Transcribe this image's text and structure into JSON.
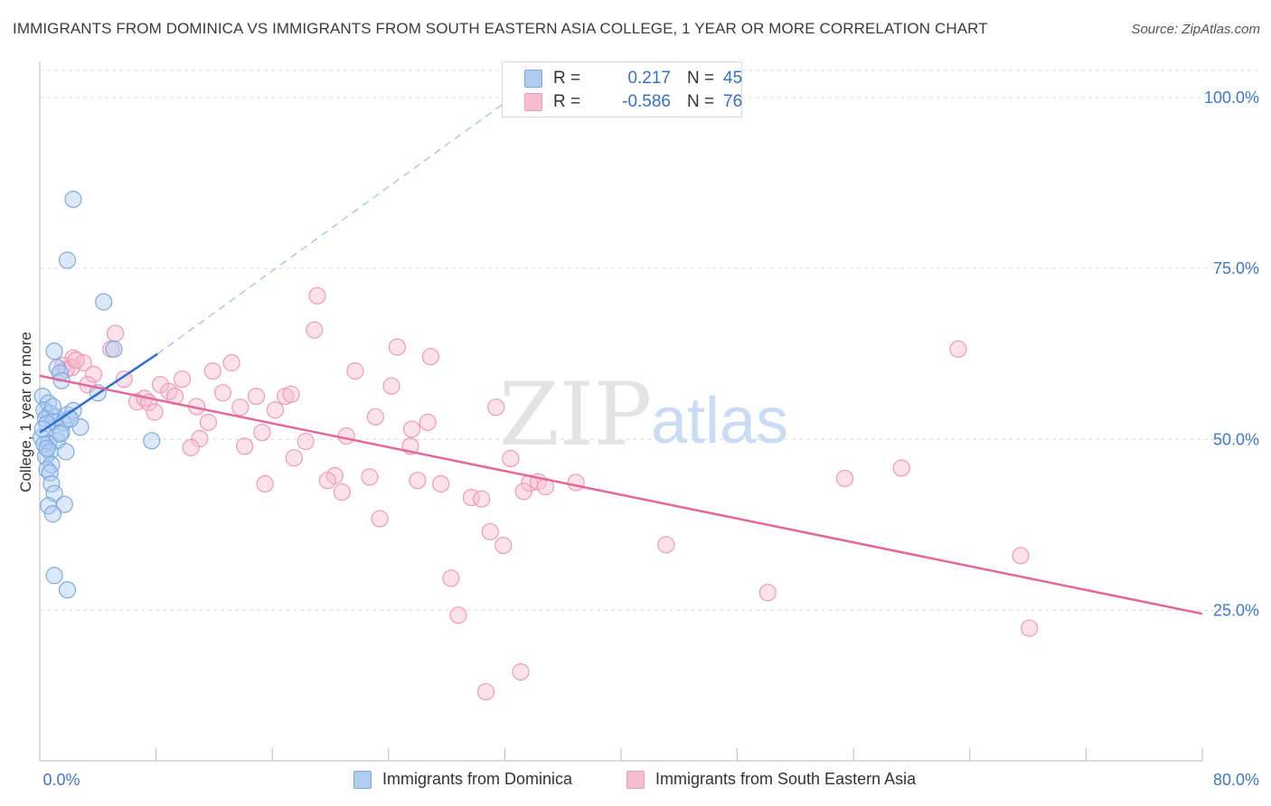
{
  "header": {
    "title": "IMMIGRANTS FROM DOMINICA VS IMMIGRANTS FROM SOUTH EASTERN ASIA COLLEGE, 1 YEAR OR MORE CORRELATION CHART",
    "source": "Source: ZipAtlas.com"
  },
  "stats": {
    "dominica": {
      "r_label": "R =",
      "r_value": "0.217",
      "n_label": "N =",
      "n_value": "45"
    },
    "sea": {
      "r_label": "R =",
      "r_value": "-0.586",
      "n_label": "N =",
      "n_value": "76"
    }
  },
  "watermark": {
    "zip": "ZIP",
    "atlas": "atlas"
  },
  "legend": {
    "dominica": "Immigrants from Dominica",
    "sea": "Immigrants from South Eastern Asia"
  },
  "colors": {
    "dominica_fill": "#aecbf0",
    "dominica_stroke": "#7fa9e0",
    "dominica_line": "#2f6fd0",
    "sea_fill": "#f7bcd0",
    "sea_stroke": "#ee9ab7",
    "sea_line": "#e4679a",
    "tick_label": "#3d78c8"
  },
  "chart_data": {
    "type": "scatter",
    "title": "IMMIGRANTS FROM DOMINICA VS IMMIGRANTS FROM SOUTH EASTERN ASIA COLLEGE, 1 YEAR OR MORE CORRELATION CHART",
    "xlabel": "",
    "ylabel": "College, 1 year or more",
    "xlim": [
      0,
      80
    ],
    "ylim": [
      3,
      105
    ],
    "x_tick_labels": [
      "0.0%",
      "80.0%"
    ],
    "y_ticks": [
      25,
      50,
      75,
      100
    ],
    "y_tick_labels": [
      "25.0%",
      "50.0%",
      "75.0%",
      "100.0%"
    ],
    "grid": true,
    "legend_position": "bottom",
    "series": [
      {
        "name": "Immigrants from Dominica",
        "r": 0.217,
        "n": 45,
        "trend": {
          "x": [
            0,
            8.1
          ],
          "y": [
            51,
            62.5
          ]
        },
        "trend_extension": {
          "x": [
            8.1,
            32.5
          ],
          "y": [
            62.5,
            100
          ]
        },
        "points": [
          [
            2.3,
            85.1
          ],
          [
            1.9,
            76.2
          ],
          [
            4.4,
            70.1
          ],
          [
            1.0,
            62.9
          ],
          [
            5.1,
            63.2
          ],
          [
            1.2,
            60.5
          ],
          [
            1.4,
            59.7
          ],
          [
            1.5,
            58.6
          ],
          [
            4.0,
            56.8
          ],
          [
            0.2,
            56.3
          ],
          [
            0.6,
            55.3
          ],
          [
            0.3,
            54.3
          ],
          [
            0.7,
            53.8
          ],
          [
            1.1,
            53.3
          ],
          [
            1.9,
            53.6
          ],
          [
            2.3,
            54.2
          ],
          [
            0.4,
            53.0
          ],
          [
            0.9,
            52.6
          ],
          [
            0.5,
            52.3
          ],
          [
            1.6,
            52.4
          ],
          [
            2.8,
            51.8
          ],
          [
            1.5,
            51.0
          ],
          [
            0.1,
            50.3
          ],
          [
            0.6,
            49.5
          ],
          [
            1.2,
            49.8
          ],
          [
            0.3,
            49.3
          ],
          [
            0.7,
            48.2
          ],
          [
            1.8,
            48.2
          ],
          [
            0.4,
            47.5
          ],
          [
            0.8,
            46.3
          ],
          [
            0.5,
            45.6
          ],
          [
            0.7,
            45.1
          ],
          [
            0.8,
            43.5
          ],
          [
            1.0,
            42.1
          ],
          [
            0.6,
            40.3
          ],
          [
            1.7,
            40.5
          ],
          [
            0.9,
            39.1
          ],
          [
            7.7,
            49.8
          ],
          [
            1.0,
            30.1
          ],
          [
            1.9,
            28.0
          ],
          [
            0.2,
            51.5
          ],
          [
            0.9,
            54.8
          ],
          [
            1.4,
            50.8
          ],
          [
            0.5,
            48.7
          ],
          [
            2.1,
            53.0
          ]
        ]
      },
      {
        "name": "Immigrants from South Eastern Asia",
        "r": -0.586,
        "n": 76,
        "trend": {
          "x": [
            0,
            80
          ],
          "y": [
            59.3,
            24.5
          ]
        },
        "points": [
          [
            19.1,
            71.0
          ],
          [
            18.9,
            66.0
          ],
          [
            5.2,
            65.5
          ],
          [
            4.9,
            63.2
          ],
          [
            24.6,
            63.5
          ],
          [
            26.9,
            62.1
          ],
          [
            63.2,
            63.2
          ],
          [
            2.3,
            61.9
          ],
          [
            3.0,
            61.2
          ],
          [
            13.2,
            61.2
          ],
          [
            1.6,
            60.8
          ],
          [
            2.2,
            60.5
          ],
          [
            11.9,
            60.0
          ],
          [
            21.7,
            60.0
          ],
          [
            3.7,
            59.5
          ],
          [
            5.8,
            58.8
          ],
          [
            9.8,
            58.8
          ],
          [
            8.3,
            58.0
          ],
          [
            3.3,
            58.0
          ],
          [
            24.2,
            57.8
          ],
          [
            8.9,
            57.0
          ],
          [
            12.6,
            56.8
          ],
          [
            9.3,
            56.3
          ],
          [
            14.9,
            56.3
          ],
          [
            16.9,
            56.3
          ],
          [
            17.3,
            56.6
          ],
          [
            6.7,
            55.5
          ],
          [
            7.2,
            56.0
          ],
          [
            7.5,
            55.4
          ],
          [
            10.8,
            54.8
          ],
          [
            13.8,
            54.7
          ],
          [
            16.2,
            54.3
          ],
          [
            31.4,
            54.7
          ],
          [
            7.9,
            54.0
          ],
          [
            23.1,
            53.3
          ],
          [
            11.6,
            52.5
          ],
          [
            26.7,
            52.5
          ],
          [
            25.6,
            51.5
          ],
          [
            15.3,
            51.0
          ],
          [
            21.1,
            50.5
          ],
          [
            11.0,
            50.1
          ],
          [
            18.3,
            49.7
          ],
          [
            10.4,
            48.8
          ],
          [
            14.1,
            49.0
          ],
          [
            25.5,
            49.0
          ],
          [
            17.5,
            47.3
          ],
          [
            32.4,
            47.2
          ],
          [
            59.3,
            45.8
          ],
          [
            20.3,
            44.7
          ],
          [
            22.7,
            44.5
          ],
          [
            19.8,
            44.0
          ],
          [
            26.0,
            44.0
          ],
          [
            15.5,
            43.5
          ],
          [
            27.6,
            43.5
          ],
          [
            33.7,
            43.6
          ],
          [
            34.3,
            43.8
          ],
          [
            34.8,
            43.1
          ],
          [
            36.9,
            43.7
          ],
          [
            55.4,
            44.3
          ],
          [
            20.8,
            42.3
          ],
          [
            29.7,
            41.5
          ],
          [
            30.4,
            41.3
          ],
          [
            23.4,
            38.4
          ],
          [
            31.0,
            36.5
          ],
          [
            31.9,
            34.5
          ],
          [
            43.1,
            34.6
          ],
          [
            67.5,
            33.0
          ],
          [
            28.3,
            29.7
          ],
          [
            50.1,
            27.6
          ],
          [
            28.8,
            24.3
          ],
          [
            68.1,
            22.4
          ],
          [
            33.1,
            16.0
          ],
          [
            30.7,
            13.1
          ],
          [
            33.3,
            42.4
          ],
          [
            1.8,
            60.2
          ],
          [
            2.5,
            61.6
          ]
        ]
      }
    ]
  }
}
